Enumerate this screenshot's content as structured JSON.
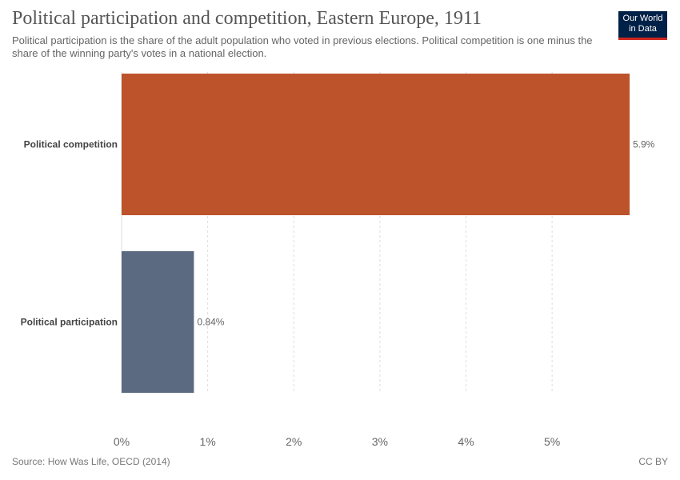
{
  "header": {
    "title": "Political participation and competition, Eastern Europe, 1911",
    "subtitle": "Political participation is the share of the adult population who voted in previous elections. Political competition is one minus the share of the winning party's votes in a national election."
  },
  "logo": {
    "line1": "Our World",
    "line2": "in Data"
  },
  "footer": {
    "source": "Source: How Was Life, OECD (2014)",
    "license": "CC BY"
  },
  "colors": {
    "competition": "#bd532b",
    "participation": "#5b6a81",
    "grid": "#dddddd",
    "text": "#444444"
  },
  "chart_data": {
    "type": "bar",
    "orientation": "horizontal",
    "categories": [
      "Political competition",
      "Political participation"
    ],
    "values": [
      5.9,
      0.84
    ],
    "value_labels": [
      "5.9%",
      "0.84%"
    ],
    "xlim": [
      0,
      5.9
    ],
    "xticks": [
      0,
      1,
      2,
      3,
      4,
      5
    ],
    "xtick_labels": [
      "0%",
      "1%",
      "2%",
      "3%",
      "4%",
      "5%"
    ],
    "grid": true
  }
}
